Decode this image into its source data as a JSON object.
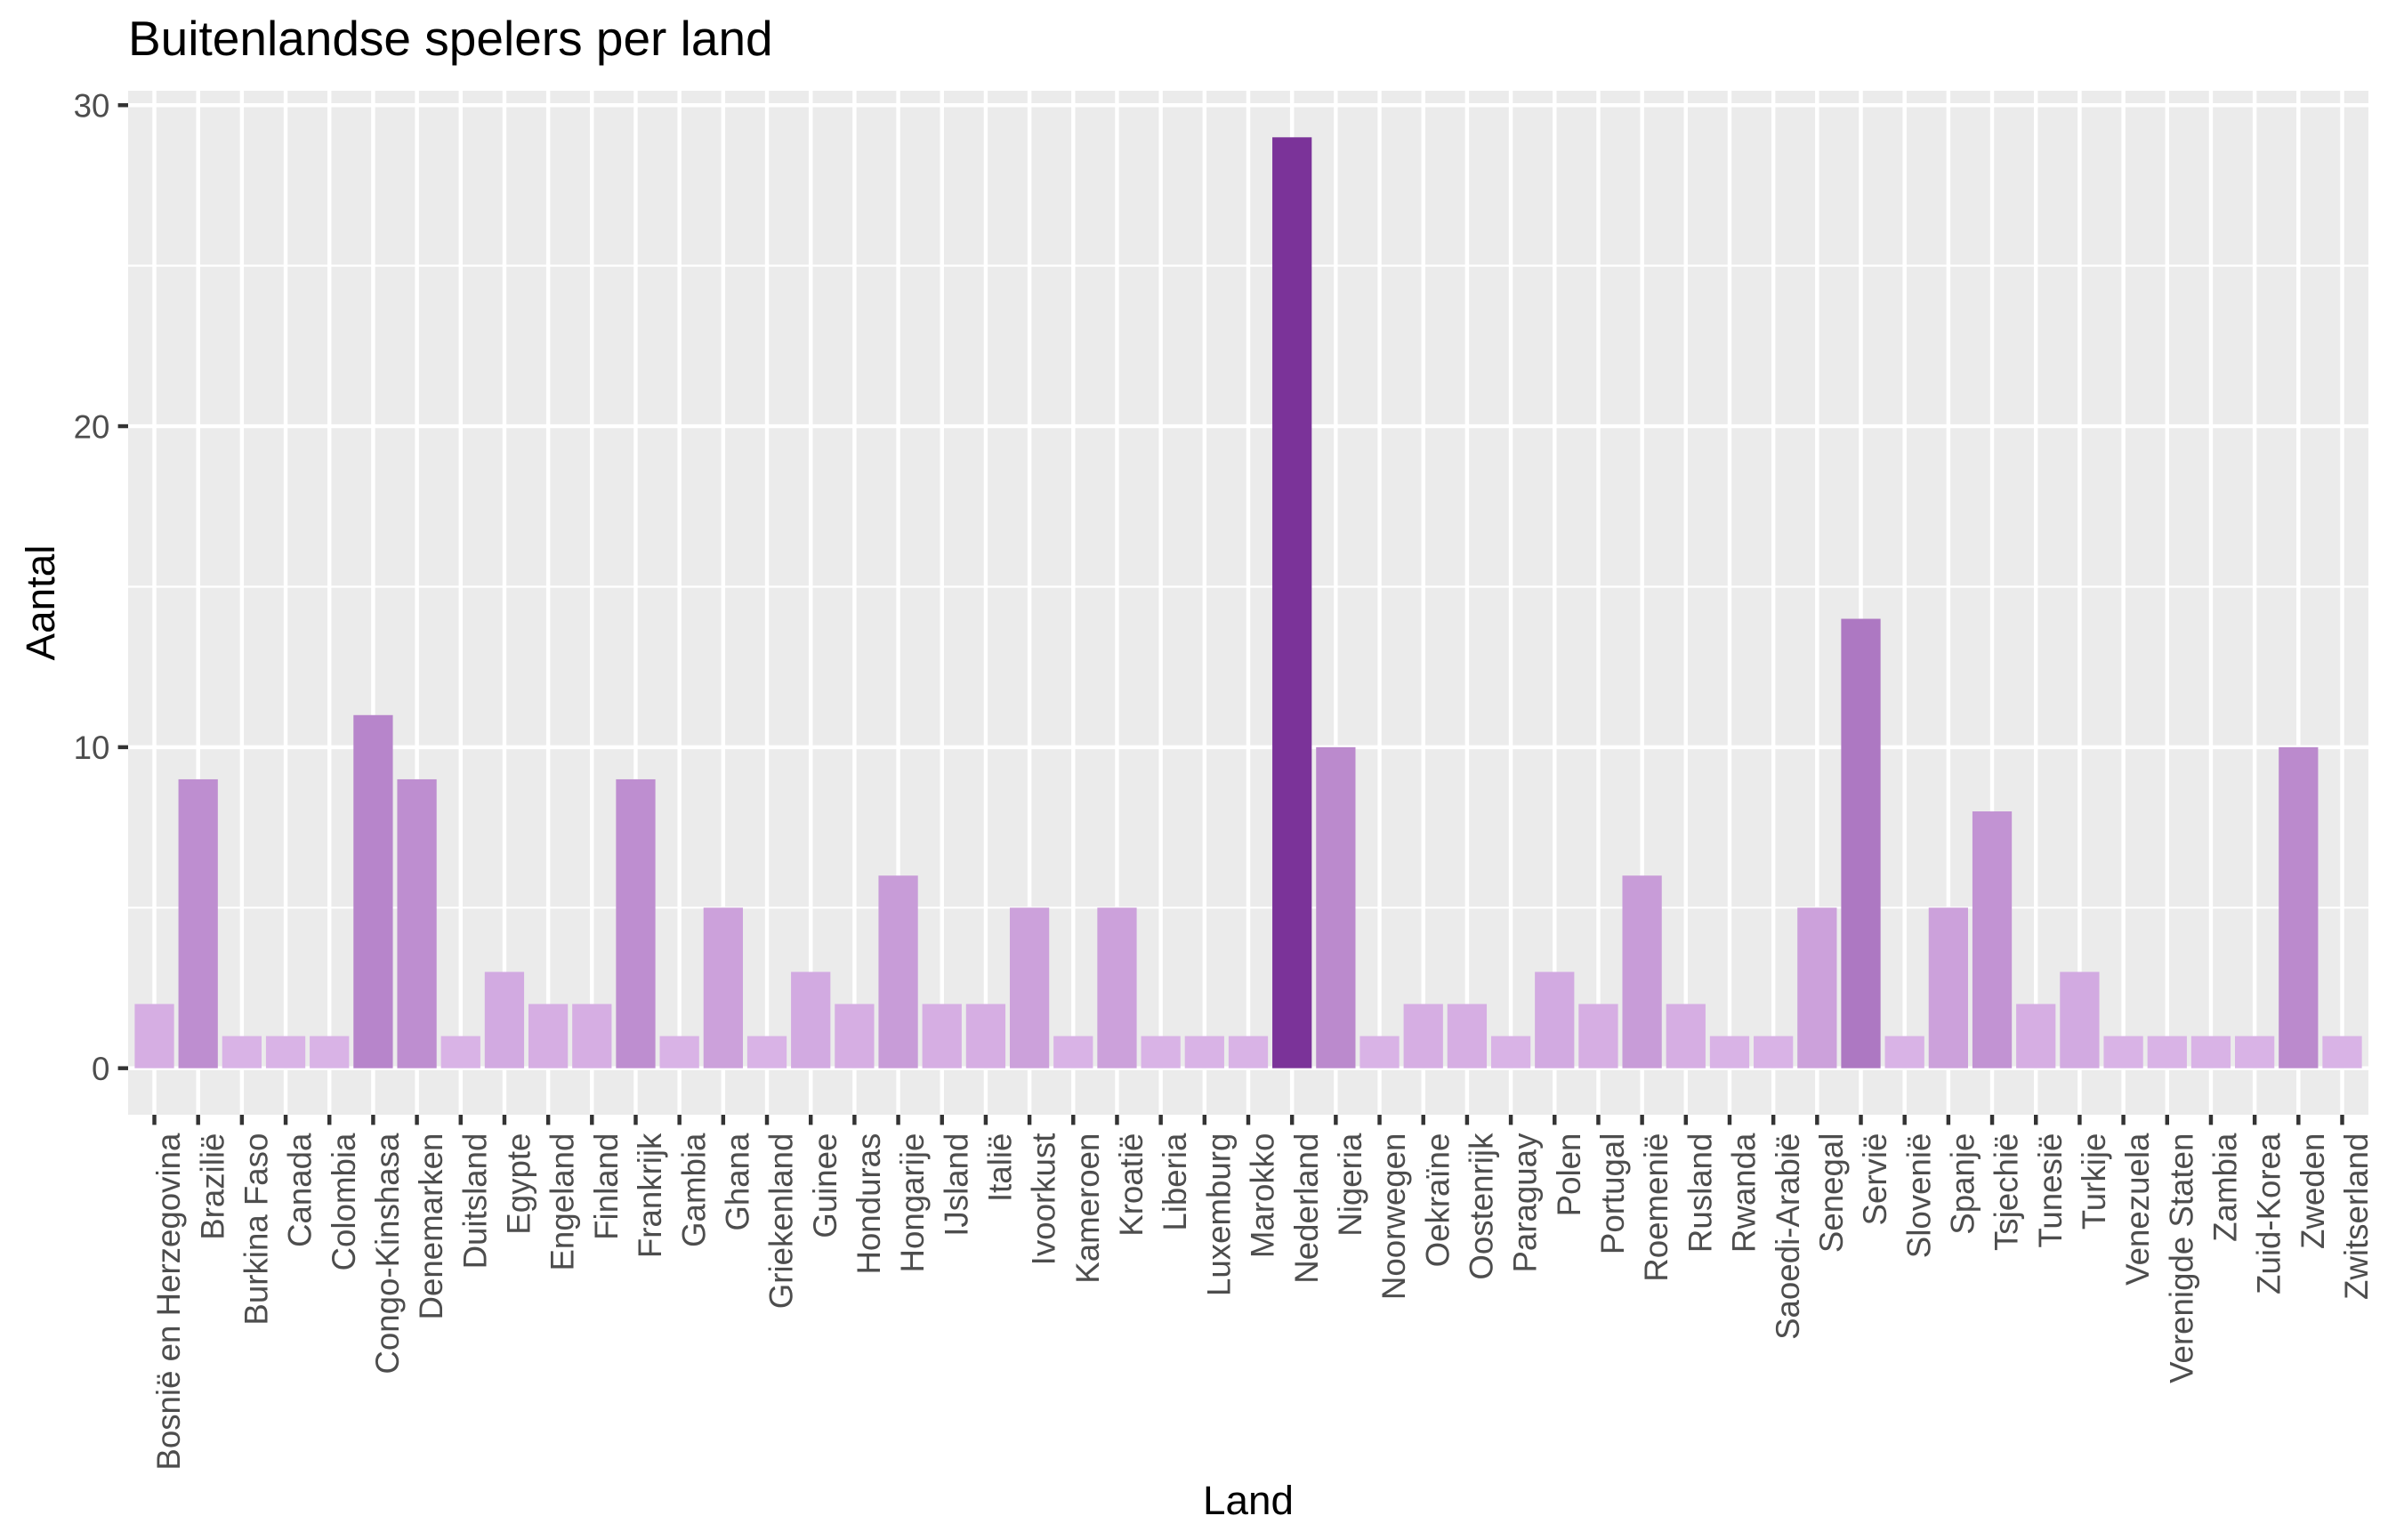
{
  "chart_data": {
    "type": "bar",
    "title": "Buitenlandse spelers per land",
    "xlabel": "Land",
    "ylabel": "Aantal",
    "categories": [
      "Bosnië en Herzegovina",
      "Brazilië",
      "Burkina Faso",
      "Canada",
      "Colombia",
      "Congo-Kinshasa",
      "Denemarken",
      "Duitsland",
      "Egypte",
      "Engeland",
      "Finland",
      "Frankrijk",
      "Gambia",
      "Ghana",
      "Griekenland",
      "Guinee",
      "Honduras",
      "Hongarije",
      "IJsland",
      "Italië",
      "Ivoorkust",
      "Kameroen",
      "Kroatië",
      "Liberia",
      "Luxemburg",
      "Marokko",
      "Nederland",
      "Nigeria",
      "Noorwegen",
      "Oekraïne",
      "Oostenrijk",
      "Paraguay",
      "Polen",
      "Portugal",
      "Roemenië",
      "Rusland",
      "Rwanda",
      "Saoedi-Arabië",
      "Senegal",
      "Servië",
      "Slovenië",
      "Spanje",
      "Tsjechië",
      "Tunesië",
      "Turkije",
      "Venezuela",
      "Verenigde Staten",
      "Zambia",
      "Zuid-Korea",
      "Zweden",
      "Zwitserland"
    ],
    "values": [
      2,
      9,
      1,
      1,
      1,
      11,
      9,
      1,
      3,
      2,
      2,
      9,
      1,
      5,
      1,
      3,
      2,
      6,
      2,
      2,
      5,
      1,
      5,
      1,
      1,
      1,
      29,
      10,
      1,
      2,
      2,
      1,
      3,
      2,
      6,
      2,
      1,
      1,
      5,
      14,
      1,
      5,
      8,
      2,
      3,
      1,
      1,
      1,
      1,
      10,
      1
    ],
    "ylim": [
      -1.45,
      30.45
    ],
    "yticks": [
      0,
      10,
      20,
      30
    ],
    "grid": true,
    "colors": {
      "panel_background": "#ebebeb",
      "grid": "#ffffff",
      "tick": "#333333",
      "axis_text": "#4d4d4d",
      "fill_low": "#d9b3e6",
      "fill_high": "#7b3399"
    }
  }
}
